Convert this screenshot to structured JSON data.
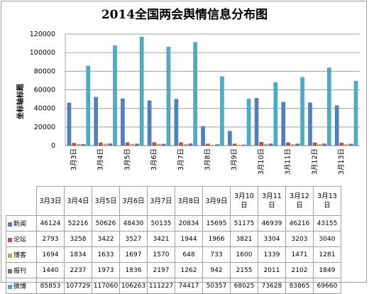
{
  "chart_data": {
    "type": "bar",
    "title": "2014全国两会舆情信息分布图",
    "ylabel": "坐标轴标题",
    "ylim": [
      0,
      120000
    ],
    "yticks": [
      0,
      20000,
      40000,
      60000,
      80000,
      100000,
      120000
    ],
    "grid": true,
    "categories": [
      "3月3日",
      "3月4日",
      "3月5日",
      "3月6日",
      "3月7日",
      "3月8日",
      "3月9日",
      "3月10日",
      "3月11日",
      "3月12日",
      "3月13日"
    ],
    "table_headers": [
      "3月3日",
      "3月4日",
      "3月5日",
      "3月6日",
      "3月7日",
      "3月8日",
      "3月9日",
      "3月10\n日",
      "3月11\n日",
      "3月12\n日",
      "3月13\n日"
    ],
    "series": [
      {
        "name": "新闻",
        "color": "#4f81bd",
        "values": [
          46124,
          52216,
          50626,
          48430,
          50135,
          20834,
          15695,
          51175,
          46939,
          46216,
          43155
        ]
      },
      {
        "name": "论坛",
        "color": "#c0504d",
        "values": [
          2793,
          3258,
          3422,
          3527,
          3421,
          1944,
          1966,
          3821,
          3304,
          3203,
          3040
        ]
      },
      {
        "name": "博客",
        "color": "#9bbb59",
        "values": [
          1694,
          1834,
          1633,
          1697,
          1570,
          648,
          733,
          1600,
          1339,
          1471,
          1281
        ]
      },
      {
        "name": "报刊",
        "color": "#8064a2",
        "values": [
          1440,
          2237,
          1973,
          1836,
          2197,
          1262,
          942,
          2155,
          2011,
          2102,
          1849
        ]
      },
      {
        "name": "微博",
        "color": "#4bacc6",
        "values": [
          85853,
          107729,
          117060,
          106263,
          111227,
          74417,
          50357,
          68025,
          73628,
          83865,
          69660
        ]
      }
    ]
  }
}
